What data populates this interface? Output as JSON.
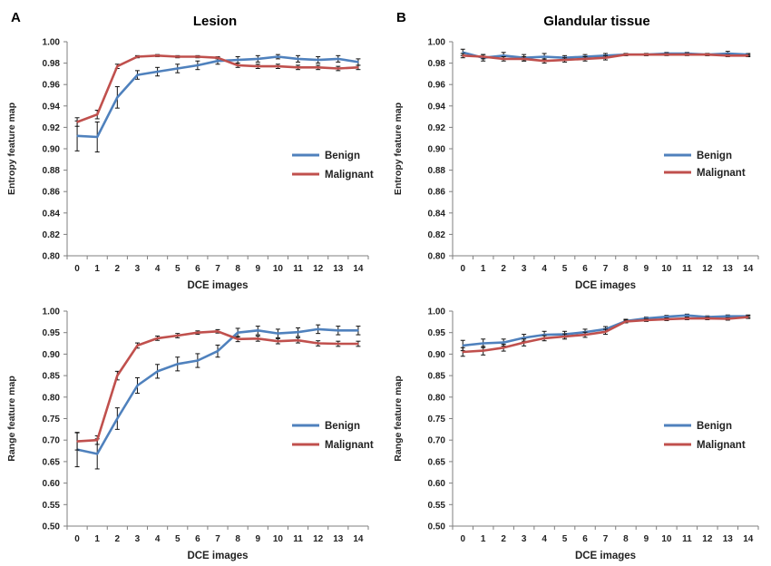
{
  "figure": {
    "panels": [
      {
        "letter": "A",
        "title": "Lesion"
      },
      {
        "letter": "B",
        "title": "Glandular tissue"
      }
    ]
  },
  "colors": {
    "benign": "#4f81bd",
    "malignant": "#c0504d"
  },
  "chart_data": [
    {
      "type": "line",
      "panel": "A",
      "title": "Lesion",
      "xlabel": "DCE images",
      "ylabel": "Entropy feature map",
      "x": [
        0,
        1,
        2,
        3,
        4,
        5,
        6,
        7,
        8,
        9,
        10,
        11,
        12,
        13,
        14
      ],
      "ylim": [
        0.8,
        1.0
      ],
      "yticks": [
        "0.80",
        "0.82",
        "0.84",
        "0.86",
        "0.88",
        "0.90",
        "0.92",
        "0.94",
        "0.96",
        "0.98",
        "1.00"
      ],
      "legend_position": "right",
      "series": [
        {
          "name": "Benign",
          "color": "#4f81bd",
          "values": [
            0.912,
            0.911,
            0.948,
            0.969,
            0.972,
            0.975,
            0.978,
            0.982,
            0.983,
            0.984,
            0.986,
            0.984,
            0.983,
            0.984,
            0.981
          ],
          "errors": [
            0.014,
            0.014,
            0.01,
            0.004,
            0.004,
            0.004,
            0.004,
            0.003,
            0.003,
            0.003,
            0.002,
            0.003,
            0.003,
            0.003,
            0.003
          ]
        },
        {
          "name": "Malignant",
          "color": "#c0504d",
          "values": [
            0.925,
            0.932,
            0.977,
            0.986,
            0.987,
            0.986,
            0.986,
            0.985,
            0.978,
            0.977,
            0.977,
            0.976,
            0.976,
            0.975,
            0.976
          ],
          "errors": [
            0.004,
            0.004,
            0.002,
            0.001,
            0.001,
            0.001,
            0.001,
            0.001,
            0.002,
            0.002,
            0.002,
            0.002,
            0.002,
            0.002,
            0.002
          ]
        }
      ]
    },
    {
      "type": "line",
      "panel": "B",
      "title": "Glandular tissue",
      "xlabel": "DCE images",
      "ylabel": "Entropy feature map",
      "x": [
        0,
        1,
        2,
        3,
        4,
        5,
        6,
        7,
        8,
        9,
        10,
        11,
        12,
        13,
        14
      ],
      "ylim": [
        0.8,
        1.0
      ],
      "yticks": [
        "0.80",
        "0.82",
        "0.84",
        "0.86",
        "0.88",
        "0.90",
        "0.92",
        "0.94",
        "0.96",
        "0.98",
        "1.00"
      ],
      "legend_position": "right",
      "series": [
        {
          "name": "Benign",
          "color": "#4f81bd",
          "values": [
            0.99,
            0.985,
            0.987,
            0.985,
            0.986,
            0.985,
            0.986,
            0.987,
            0.988,
            0.988,
            0.989,
            0.989,
            0.988,
            0.989,
            0.988
          ],
          "errors": [
            0.003,
            0.003,
            0.003,
            0.003,
            0.003,
            0.002,
            0.002,
            0.002,
            0.001,
            0.001,
            0.001,
            0.001,
            0.001,
            0.002,
            0.001
          ]
        },
        {
          "name": "Malignant",
          "color": "#c0504d",
          "values": [
            0.987,
            0.986,
            0.984,
            0.984,
            0.982,
            0.983,
            0.984,
            0.985,
            0.988,
            0.988,
            0.988,
            0.988,
            0.988,
            0.987,
            0.987
          ],
          "errors": [
            0.002,
            0.002,
            0.002,
            0.002,
            0.002,
            0.002,
            0.002,
            0.002,
            0.001,
            0.001,
            0.001,
            0.001,
            0.001,
            0.001,
            0.001
          ]
        }
      ]
    },
    {
      "type": "line",
      "panel": "A",
      "xlabel": "DCE images",
      "ylabel": "Range feature map",
      "x": [
        0,
        1,
        2,
        3,
        4,
        5,
        6,
        7,
        8,
        9,
        10,
        11,
        12,
        13,
        14
      ],
      "ylim": [
        0.5,
        1.0
      ],
      "yticks": [
        "0.50",
        "0.55",
        "0.60",
        "0.65",
        "0.70",
        "0.75",
        "0.80",
        "0.85",
        "0.90",
        "0.95",
        "1.00"
      ],
      "legend_position": "right",
      "series": [
        {
          "name": "Benign",
          "color": "#4f81bd",
          "values": [
            0.678,
            0.668,
            0.75,
            0.827,
            0.86,
            0.877,
            0.885,
            0.907,
            0.95,
            0.955,
            0.948,
            0.951,
            0.958,
            0.955,
            0.955
          ],
          "errors": [
            0.04,
            0.035,
            0.025,
            0.018,
            0.016,
            0.016,
            0.016,
            0.014,
            0.01,
            0.01,
            0.01,
            0.01,
            0.01,
            0.01,
            0.01
          ]
        },
        {
          "name": "Malignant",
          "color": "#c0504d",
          "values": [
            0.697,
            0.7,
            0.85,
            0.92,
            0.937,
            0.943,
            0.95,
            0.953,
            0.935,
            0.936,
            0.93,
            0.932,
            0.925,
            0.924,
            0.924
          ],
          "errors": [
            0.02,
            0.01,
            0.01,
            0.006,
            0.005,
            0.005,
            0.004,
            0.004,
            0.006,
            0.006,
            0.006,
            0.006,
            0.006,
            0.006,
            0.006
          ]
        }
      ]
    },
    {
      "type": "line",
      "panel": "B",
      "xlabel": "DCE images",
      "ylabel": "Range feature map",
      "x": [
        0,
        1,
        2,
        3,
        4,
        5,
        6,
        7,
        8,
        9,
        10,
        11,
        12,
        13,
        14
      ],
      "ylim": [
        0.5,
        1.0
      ],
      "yticks": [
        "0.50",
        "0.55",
        "0.60",
        "0.65",
        "0.70",
        "0.75",
        "0.80",
        "0.85",
        "0.90",
        "0.95",
        "1.00"
      ],
      "legend_position": "right",
      "series": [
        {
          "name": "Benign",
          "color": "#4f81bd",
          "values": [
            0.92,
            0.925,
            0.927,
            0.938,
            0.945,
            0.946,
            0.951,
            0.958,
            0.977,
            0.983,
            0.987,
            0.99,
            0.986,
            0.988,
            0.988
          ],
          "errors": [
            0.012,
            0.01,
            0.008,
            0.008,
            0.008,
            0.007,
            0.007,
            0.006,
            0.004,
            0.003,
            0.003,
            0.003,
            0.003,
            0.003,
            0.003
          ]
        },
        {
          "name": "Malignant",
          "color": "#c0504d",
          "values": [
            0.905,
            0.908,
            0.915,
            0.927,
            0.937,
            0.941,
            0.945,
            0.952,
            0.976,
            0.979,
            0.981,
            0.983,
            0.983,
            0.982,
            0.986
          ],
          "errors": [
            0.01,
            0.01,
            0.008,
            0.008,
            0.006,
            0.006,
            0.006,
            0.006,
            0.003,
            0.003,
            0.003,
            0.003,
            0.003,
            0.003,
            0.003
          ]
        }
      ]
    }
  ]
}
